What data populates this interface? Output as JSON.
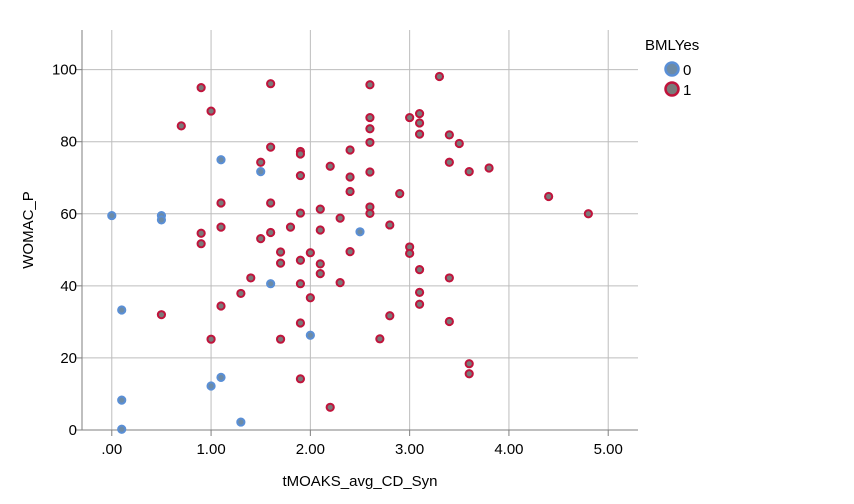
{
  "chart_data": {
    "type": "scatter",
    "title": "",
    "xlabel": "tMOAKS_avg_CD_Syn",
    "ylabel": "WOMAC_P",
    "xlim": [
      -0.3,
      5.3
    ],
    "ylim": [
      0,
      111
    ],
    "x_ticks": [
      0,
      1,
      2,
      3,
      4,
      5
    ],
    "x_tick_labels": [
      ".00",
      "1.00",
      "2.00",
      "3.00",
      "4.00",
      "5.00"
    ],
    "y_ticks": [
      0,
      20,
      40,
      60,
      80,
      100
    ],
    "y_tick_labels": [
      "0",
      "20",
      "40",
      "60",
      "80",
      "100"
    ],
    "grid": true,
    "legend": {
      "title": "BMLYes",
      "position": "top-right",
      "entries": [
        {
          "label": "0",
          "fill": "#6d8ba6",
          "stroke": "#5a8fd6"
        },
        {
          "label": "1",
          "fill": "#7a7a7a",
          "stroke": "#c0143c"
        }
      ]
    },
    "series": [
      {
        "name": "0",
        "fill": "#6d8ba6",
        "stroke": "#5a8fd6",
        "points": [
          [
            0.0,
            59.5
          ],
          [
            0.1,
            33.3
          ],
          [
            0.1,
            8.3
          ],
          [
            0.1,
            0.2
          ],
          [
            0.5,
            59.5
          ],
          [
            0.5,
            58.3
          ],
          [
            1.0,
            12.2
          ],
          [
            1.1,
            75.0
          ],
          [
            1.1,
            14.6
          ],
          [
            1.3,
            2.2
          ],
          [
            1.5,
            71.7
          ],
          [
            1.6,
            40.6
          ],
          [
            2.0,
            26.3
          ],
          [
            2.5,
            55.0
          ]
        ]
      },
      {
        "name": "1",
        "fill": "#7a7a7a",
        "stroke": "#c0143c",
        "points": [
          [
            0.5,
            32.0
          ],
          [
            0.7,
            84.4
          ],
          [
            0.9,
            95.0
          ],
          [
            0.9,
            54.6
          ],
          [
            0.9,
            51.7
          ],
          [
            1.0,
            88.5
          ],
          [
            1.0,
            25.2
          ],
          [
            1.1,
            63.0
          ],
          [
            1.1,
            56.3
          ],
          [
            1.1,
            34.4
          ],
          [
            1.3,
            37.9
          ],
          [
            1.4,
            42.2
          ],
          [
            1.5,
            74.3
          ],
          [
            1.5,
            53.1
          ],
          [
            1.6,
            96.1
          ],
          [
            1.6,
            78.5
          ],
          [
            1.6,
            63.0
          ],
          [
            1.6,
            54.8
          ],
          [
            1.7,
            49.4
          ],
          [
            1.7,
            46.3
          ],
          [
            1.7,
            25.2
          ],
          [
            1.8,
            56.3
          ],
          [
            1.9,
            77.3
          ],
          [
            1.9,
            76.6
          ],
          [
            1.9,
            70.6
          ],
          [
            1.9,
            60.2
          ],
          [
            1.9,
            47.1
          ],
          [
            1.9,
            40.6
          ],
          [
            1.9,
            29.7
          ],
          [
            1.9,
            14.2
          ],
          [
            2.0,
            49.2
          ],
          [
            2.0,
            36.7
          ],
          [
            2.1,
            61.3
          ],
          [
            2.1,
            55.5
          ],
          [
            2.1,
            46.1
          ],
          [
            2.1,
            43.4
          ],
          [
            2.2,
            73.2
          ],
          [
            2.2,
            6.3
          ],
          [
            2.3,
            58.8
          ],
          [
            2.3,
            40.9
          ],
          [
            2.4,
            77.7
          ],
          [
            2.4,
            70.2
          ],
          [
            2.4,
            66.2
          ],
          [
            2.4,
            49.5
          ],
          [
            2.6,
            95.8
          ],
          [
            2.6,
            86.7
          ],
          [
            2.6,
            83.6
          ],
          [
            2.6,
            79.8
          ],
          [
            2.6,
            71.6
          ],
          [
            2.6,
            61.9
          ],
          [
            2.6,
            60.1
          ],
          [
            2.7,
            25.3
          ],
          [
            2.8,
            56.9
          ],
          [
            2.8,
            31.7
          ],
          [
            2.9,
            65.6
          ],
          [
            3.0,
            86.7
          ],
          [
            3.0,
            50.8
          ],
          [
            3.0,
            49.0
          ],
          [
            3.1,
            87.8
          ],
          [
            3.1,
            85.2
          ],
          [
            3.1,
            82.1
          ],
          [
            3.1,
            44.5
          ],
          [
            3.1,
            38.2
          ],
          [
            3.1,
            34.9
          ],
          [
            3.3,
            98.1
          ],
          [
            3.4,
            81.9
          ],
          [
            3.4,
            74.3
          ],
          [
            3.4,
            42.2
          ],
          [
            3.4,
            30.1
          ],
          [
            3.5,
            79.5
          ],
          [
            3.6,
            71.7
          ],
          [
            3.6,
            18.4
          ],
          [
            3.6,
            15.6
          ],
          [
            3.8,
            72.7
          ],
          [
            4.4,
            64.8
          ],
          [
            4.8,
            60.0
          ]
        ]
      }
    ]
  }
}
